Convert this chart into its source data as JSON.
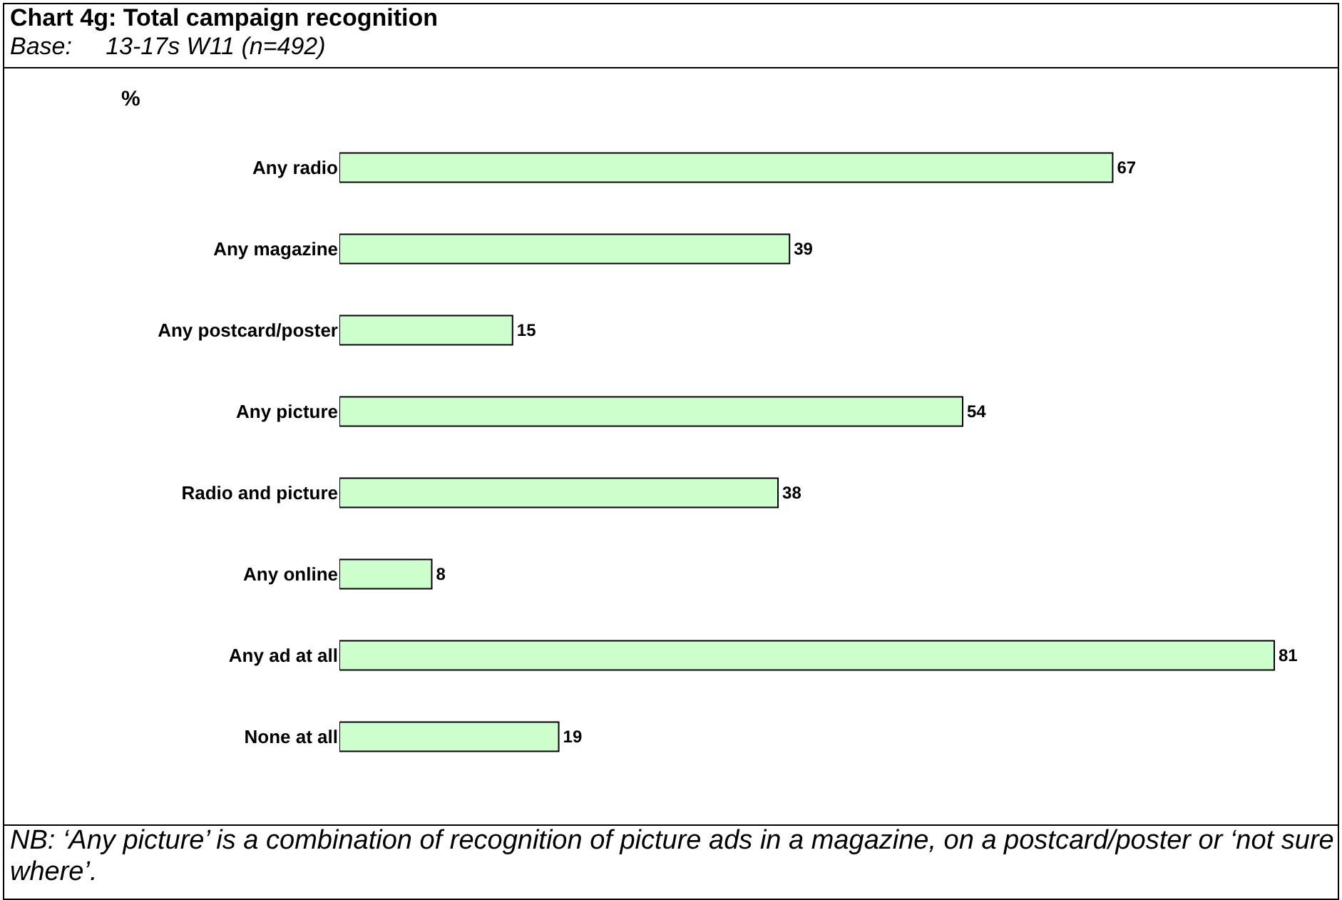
{
  "chart_data": {
    "type": "bar",
    "orientation": "horizontal",
    "title": "Chart 4g: Total campaign recognition",
    "subtitle": "Base:     13-17s W11 (n=492)",
    "xlabel": "%",
    "categories": [
      "Any radio",
      "Any magazine",
      "Any postcard/poster",
      "Any picture",
      "Radio and picture",
      "Any online",
      "Any ad at all",
      "None at all"
    ],
    "values": [
      67,
      39,
      15,
      54,
      38,
      8,
      81,
      19
    ],
    "color": "#ccffcc",
    "data_labels": true,
    "annotations": [
      "NB: ‘Any picture’ is a combination of recognition of picture ads in a magazine, on a postcard/poster or ‘not sure where’."
    ]
  }
}
